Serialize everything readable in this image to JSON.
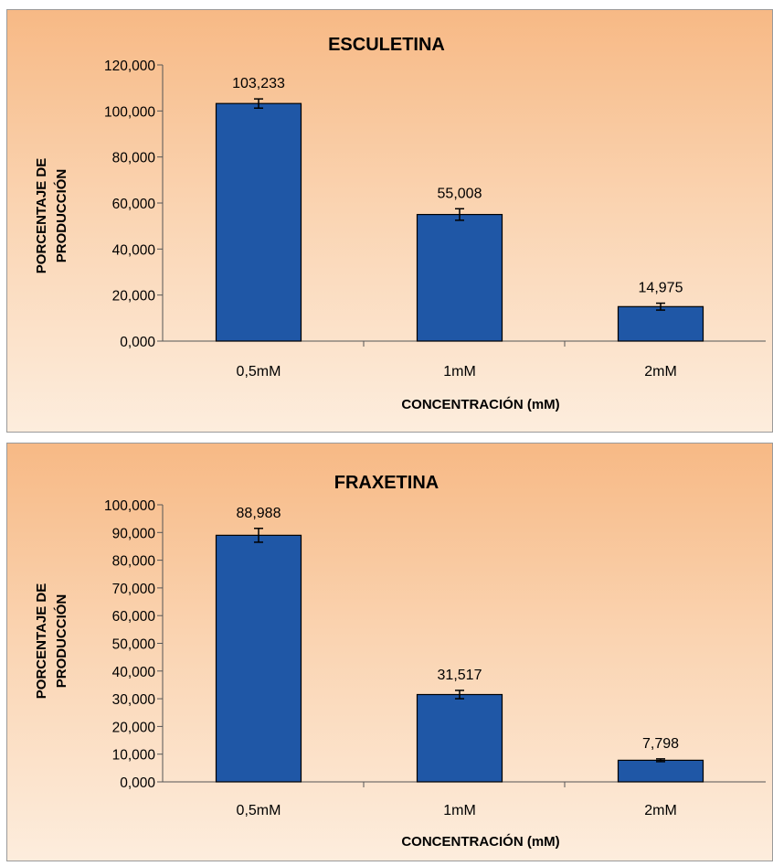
{
  "chart_data": [
    {
      "type": "bar",
      "title": "ESCULETINA",
      "xlabel": "CONCENTRACIÓN (mM)",
      "ylabel_lines": [
        "PORCENTAJE DE",
        "PRODUCCIÓN"
      ],
      "categories": [
        "0,5mM",
        "1mM",
        "2mM"
      ],
      "values": [
        103.233,
        55.008,
        14.975
      ],
      "value_labels": [
        "103,233",
        "55,008",
        "14,975"
      ],
      "error": [
        2.0,
        2.5,
        1.5
      ],
      "ylim": [
        0,
        120
      ],
      "yticks": [
        0,
        20,
        40,
        60,
        80,
        100,
        120
      ],
      "ytick_labels": [
        "0,000",
        "20,000",
        "40,000",
        "60,000",
        "80,000",
        "100,000",
        "120,000"
      ],
      "bar_color": "#1f57a6",
      "grid": false,
      "legend": "none"
    },
    {
      "type": "bar",
      "title": "FRAXETINA",
      "xlabel": "CONCENTRACIÓN (mM)",
      "ylabel_lines": [
        "PORCENTAJE DE",
        "PRODUCCIÓN"
      ],
      "categories": [
        "0,5mM",
        "1mM",
        "2mM"
      ],
      "values": [
        88.988,
        31.517,
        7.798
      ],
      "value_labels": [
        "88,988",
        "31,517",
        "7,798"
      ],
      "error": [
        2.5,
        1.5,
        0.5
      ],
      "ylim": [
        0,
        100
      ],
      "yticks": [
        0,
        10,
        20,
        30,
        40,
        50,
        60,
        70,
        80,
        90,
        100
      ],
      "ytick_labels": [
        "0,000",
        "10,000",
        "20,000",
        "30,000",
        "40,000",
        "50,000",
        "60,000",
        "70,000",
        "80,000",
        "90,000",
        "100,000"
      ],
      "bar_color": "#1f57a6",
      "grid": false,
      "legend": "none"
    }
  ]
}
